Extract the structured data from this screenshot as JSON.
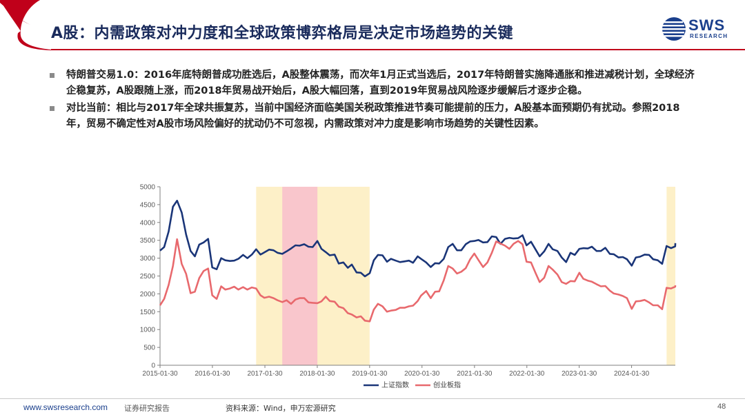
{
  "header": {
    "title": "A股：内需政策对冲力度和全球政策博弈格局是决定市场趋势的关键",
    "logo_text": "SWS",
    "logo_sub": "RESEARCH"
  },
  "bullets": [
    "特朗普交易1.0：2016年底特朗普成功胜选后，A股整体震荡，而次年1月正式当选后，2017年特朗普实施降通胀和推进减税计划，全球经济企稳复苏，A股跟随上涨，而2018年贸易战开始后，A股大幅回落，直到2019年贸易战风险逐步缓解后才逐步企稳。",
    "对比当前：相比与2017年全球共振复苏，当前中国经济面临美国关税政策推进节奏可能提前的压力，A股基本面预期仍有扰动。参照2018年，贸易不确定性对A股市场风险偏好的扰动仍不可忽视，内需政策对冲力度是影响市场趋势的关键性因素。"
  ],
  "chart_data": {
    "type": "line",
    "x_ticks": [
      "2015-01-30",
      "2016-01-30",
      "2017-01-30",
      "2018-01-30",
      "2019-01-30",
      "2020-01-30",
      "2021-01-30",
      "2022-01-30",
      "2023-01-30",
      "2024-01-30"
    ],
    "y_ticks": [
      0,
      500,
      1000,
      1500,
      2000,
      2500,
      3000,
      3500,
      4000,
      4500,
      5000
    ],
    "ylim": [
      0,
      5000
    ],
    "xlim": [
      "2015-01-30",
      "2024-11-30"
    ],
    "grid": false,
    "legend_position": "bottom",
    "shaded_periods": [
      {
        "start": "2016-11-30",
        "end": "2019-01-30",
        "color": "#fdf0c8"
      },
      {
        "start": "2017-05-31",
        "end": "2018-01-31",
        "color": "#f9c6cc"
      },
      {
        "start": "2024-09-30",
        "end": "2024-11-30",
        "color": "#fdf0c8"
      }
    ],
    "series": [
      {
        "name": "上证指数",
        "color": "#1a3578",
        "points": [
          [
            "2015-01-30",
            3210
          ],
          [
            "2015-02-28",
            3310
          ],
          [
            "2015-03-31",
            3750
          ],
          [
            "2015-04-30",
            4440
          ],
          [
            "2015-05-29",
            4610
          ],
          [
            "2015-06-30",
            4280
          ],
          [
            "2015-07-31",
            3660
          ],
          [
            "2015-08-31",
            3200
          ],
          [
            "2015-09-30",
            3050
          ],
          [
            "2015-10-30",
            3380
          ],
          [
            "2015-11-30",
            3440
          ],
          [
            "2015-12-31",
            3540
          ],
          [
            "2016-01-29",
            2740
          ],
          [
            "2016-02-29",
            2690
          ],
          [
            "2016-03-31",
            3000
          ],
          [
            "2016-04-29",
            2940
          ],
          [
            "2016-05-31",
            2920
          ],
          [
            "2016-06-30",
            2930
          ],
          [
            "2016-07-29",
            2980
          ],
          [
            "2016-08-31",
            3090
          ],
          [
            "2016-09-30",
            3000
          ],
          [
            "2016-10-31",
            3100
          ],
          [
            "2016-11-30",
            3250
          ],
          [
            "2016-12-30",
            3100
          ],
          [
            "2017-01-26",
            3160
          ],
          [
            "2017-02-28",
            3240
          ],
          [
            "2017-03-31",
            3220
          ],
          [
            "2017-04-28",
            3150
          ],
          [
            "2017-05-31",
            3120
          ],
          [
            "2017-06-30",
            3190
          ],
          [
            "2017-07-31",
            3270
          ],
          [
            "2017-08-31",
            3360
          ],
          [
            "2017-09-29",
            3350
          ],
          [
            "2017-10-31",
            3390
          ],
          [
            "2017-11-30",
            3320
          ],
          [
            "2017-12-29",
            3310
          ],
          [
            "2018-01-31",
            3480
          ],
          [
            "2018-02-28",
            3260
          ],
          [
            "2018-03-30",
            3170
          ],
          [
            "2018-04-27",
            3080
          ],
          [
            "2018-05-31",
            3100
          ],
          [
            "2018-06-29",
            2850
          ],
          [
            "2018-07-31",
            2880
          ],
          [
            "2018-08-31",
            2730
          ],
          [
            "2018-09-28",
            2820
          ],
          [
            "2018-10-31",
            2600
          ],
          [
            "2018-11-30",
            2590
          ],
          [
            "2018-12-28",
            2490
          ],
          [
            "2019-01-31",
            2580
          ],
          [
            "2019-02-28",
            2940
          ],
          [
            "2019-03-29",
            3090
          ],
          [
            "2019-04-30",
            3080
          ],
          [
            "2019-05-31",
            2900
          ],
          [
            "2019-06-28",
            2980
          ],
          [
            "2019-07-31",
            2930
          ],
          [
            "2019-08-30",
            2890
          ],
          [
            "2019-09-30",
            2910
          ],
          [
            "2019-10-31",
            2930
          ],
          [
            "2019-11-29",
            2870
          ],
          [
            "2019-12-31",
            3050
          ],
          [
            "2020-01-23",
            2980
          ],
          [
            "2020-02-28",
            2880
          ],
          [
            "2020-03-31",
            2750
          ],
          [
            "2020-04-30",
            2860
          ],
          [
            "2020-05-29",
            2850
          ],
          [
            "2020-06-30",
            2980
          ],
          [
            "2020-07-31",
            3310
          ],
          [
            "2020-08-31",
            3400
          ],
          [
            "2020-09-30",
            3220
          ],
          [
            "2020-10-30",
            3220
          ],
          [
            "2020-11-30",
            3390
          ],
          [
            "2020-12-31",
            3470
          ],
          [
            "2021-01-29",
            3480
          ],
          [
            "2021-02-26",
            3510
          ],
          [
            "2021-03-31",
            3440
          ],
          [
            "2021-04-30",
            3450
          ],
          [
            "2021-05-31",
            3610
          ],
          [
            "2021-06-30",
            3590
          ],
          [
            "2021-07-30",
            3400
          ],
          [
            "2021-08-31",
            3540
          ],
          [
            "2021-09-30",
            3570
          ],
          [
            "2021-10-29",
            3550
          ],
          [
            "2021-11-30",
            3560
          ],
          [
            "2021-12-31",
            3640
          ],
          [
            "2022-01-28",
            3360
          ],
          [
            "2022-02-28",
            3460
          ],
          [
            "2022-03-31",
            3250
          ],
          [
            "2022-04-29",
            3050
          ],
          [
            "2022-05-31",
            3190
          ],
          [
            "2022-06-30",
            3400
          ],
          [
            "2022-07-29",
            3250
          ],
          [
            "2022-08-31",
            3200
          ],
          [
            "2022-09-30",
            3020
          ],
          [
            "2022-10-31",
            2890
          ],
          [
            "2022-11-30",
            3150
          ],
          [
            "2022-12-30",
            3090
          ],
          [
            "2023-01-31",
            3260
          ],
          [
            "2023-02-28",
            3280
          ],
          [
            "2023-03-31",
            3270
          ],
          [
            "2023-04-28",
            3320
          ],
          [
            "2023-05-31",
            3200
          ],
          [
            "2023-06-30",
            3200
          ],
          [
            "2023-07-31",
            3290
          ],
          [
            "2023-08-31",
            3120
          ],
          [
            "2023-09-28",
            3110
          ],
          [
            "2023-10-31",
            3020
          ],
          [
            "2023-11-30",
            3030
          ],
          [
            "2023-12-29",
            2970
          ],
          [
            "2024-01-31",
            2790
          ],
          [
            "2024-02-29",
            3020
          ],
          [
            "2024-03-29",
            3040
          ],
          [
            "2024-04-30",
            3100
          ],
          [
            "2024-05-31",
            3090
          ],
          [
            "2024-06-28",
            2970
          ],
          [
            "2024-07-31",
            2940
          ],
          [
            "2024-08-30",
            2840
          ],
          [
            "2024-09-30",
            3340
          ],
          [
            "2024-10-31",
            3280
          ],
          [
            "2024-11-29",
            3330
          ],
          [
            "2024-11-30",
            3420
          ]
        ]
      },
      {
        "name": "创业板指",
        "color": "#e8696d",
        "points": [
          [
            "2015-01-30",
            1680
          ],
          [
            "2015-02-28",
            1860
          ],
          [
            "2015-03-31",
            2250
          ],
          [
            "2015-04-30",
            2780
          ],
          [
            "2015-05-29",
            3530
          ],
          [
            "2015-06-30",
            2840
          ],
          [
            "2015-07-31",
            2560
          ],
          [
            "2015-08-31",
            2020
          ],
          [
            "2015-09-30",
            2060
          ],
          [
            "2015-10-30",
            2440
          ],
          [
            "2015-11-30",
            2640
          ],
          [
            "2015-12-31",
            2710
          ],
          [
            "2016-01-29",
            1960
          ],
          [
            "2016-02-29",
            1860
          ],
          [
            "2016-03-31",
            2210
          ],
          [
            "2016-04-29",
            2120
          ],
          [
            "2016-05-31",
            2150
          ],
          [
            "2016-06-30",
            2200
          ],
          [
            "2016-07-29",
            2120
          ],
          [
            "2016-08-31",
            2190
          ],
          [
            "2016-09-30",
            2120
          ],
          [
            "2016-10-31",
            2180
          ],
          [
            "2016-11-30",
            2150
          ],
          [
            "2016-12-30",
            1960
          ],
          [
            "2017-01-26",
            1890
          ],
          [
            "2017-02-28",
            1920
          ],
          [
            "2017-03-31",
            1880
          ],
          [
            "2017-04-28",
            1820
          ],
          [
            "2017-05-31",
            1770
          ],
          [
            "2017-06-30",
            1820
          ],
          [
            "2017-07-31",
            1720
          ],
          [
            "2017-08-31",
            1840
          ],
          [
            "2017-09-29",
            1880
          ],
          [
            "2017-10-31",
            1880
          ],
          [
            "2017-11-30",
            1760
          ],
          [
            "2017-12-29",
            1750
          ],
          [
            "2018-01-31",
            1740
          ],
          [
            "2018-02-28",
            1790
          ],
          [
            "2018-03-30",
            1920
          ],
          [
            "2018-04-27",
            1800
          ],
          [
            "2018-05-31",
            1780
          ],
          [
            "2018-06-29",
            1640
          ],
          [
            "2018-07-31",
            1600
          ],
          [
            "2018-08-31",
            1460
          ],
          [
            "2018-09-28",
            1420
          ],
          [
            "2018-10-31",
            1340
          ],
          [
            "2018-11-30",
            1370
          ],
          [
            "2018-12-28",
            1250
          ],
          [
            "2019-01-31",
            1230
          ],
          [
            "2019-02-28",
            1560
          ],
          [
            "2019-03-29",
            1720
          ],
          [
            "2019-04-30",
            1650
          ],
          [
            "2019-05-31",
            1500
          ],
          [
            "2019-06-28",
            1530
          ],
          [
            "2019-07-31",
            1550
          ],
          [
            "2019-08-30",
            1610
          ],
          [
            "2019-09-30",
            1610
          ],
          [
            "2019-10-31",
            1650
          ],
          [
            "2019-11-29",
            1670
          ],
          [
            "2019-12-31",
            1800
          ],
          [
            "2020-01-23",
            1950
          ],
          [
            "2020-02-28",
            2080
          ],
          [
            "2020-03-31",
            1880
          ],
          [
            "2020-04-30",
            2060
          ],
          [
            "2020-05-29",
            2070
          ],
          [
            "2020-06-30",
            2380
          ],
          [
            "2020-07-31",
            2780
          ],
          [
            "2020-08-31",
            2710
          ],
          [
            "2020-09-30",
            2570
          ],
          [
            "2020-10-30",
            2620
          ],
          [
            "2020-11-30",
            2720
          ],
          [
            "2020-12-31",
            2970
          ],
          [
            "2021-01-29",
            3130
          ],
          [
            "2021-02-26",
            2950
          ],
          [
            "2021-03-31",
            2750
          ],
          [
            "2021-04-30",
            2880
          ],
          [
            "2021-05-31",
            3150
          ],
          [
            "2021-06-30",
            3470
          ],
          [
            "2021-07-30",
            3410
          ],
          [
            "2021-08-31",
            3350
          ],
          [
            "2021-09-30",
            3260
          ],
          [
            "2021-10-29",
            3400
          ],
          [
            "2021-11-30",
            3480
          ],
          [
            "2021-12-31",
            3390
          ],
          [
            "2022-01-28",
            2900
          ],
          [
            "2022-02-28",
            2880
          ],
          [
            "2022-03-31",
            2590
          ],
          [
            "2022-04-29",
            2330
          ],
          [
            "2022-05-31",
            2450
          ],
          [
            "2022-06-30",
            2780
          ],
          [
            "2022-07-29",
            2680
          ],
          [
            "2022-08-31",
            2540
          ],
          [
            "2022-09-30",
            2330
          ],
          [
            "2022-10-31",
            2280
          ],
          [
            "2022-11-30",
            2360
          ],
          [
            "2022-12-30",
            2350
          ],
          [
            "2023-01-31",
            2590
          ],
          [
            "2023-02-28",
            2420
          ],
          [
            "2023-03-31",
            2370
          ],
          [
            "2023-04-28",
            2340
          ],
          [
            "2023-05-31",
            2270
          ],
          [
            "2023-06-30",
            2210
          ],
          [
            "2023-07-31",
            2220
          ],
          [
            "2023-08-31",
            2090
          ],
          [
            "2023-09-28",
            2010
          ],
          [
            "2023-10-31",
            1980
          ],
          [
            "2023-11-30",
            1940
          ],
          [
            "2023-12-29",
            1880
          ],
          [
            "2024-01-31",
            1580
          ],
          [
            "2024-02-29",
            1790
          ],
          [
            "2024-03-29",
            1800
          ],
          [
            "2024-04-30",
            1830
          ],
          [
            "2024-05-31",
            1760
          ],
          [
            "2024-06-28",
            1680
          ],
          [
            "2024-07-31",
            1680
          ],
          [
            "2024-08-30",
            1570
          ],
          [
            "2024-09-30",
            2170
          ],
          [
            "2024-10-31",
            2150
          ],
          [
            "2024-11-29",
            2200
          ],
          [
            "2024-11-30",
            2240
          ]
        ]
      }
    ]
  },
  "footer": {
    "url": "www.swsresearch.com",
    "report_type": "证券研究报告",
    "source": "资料来源：Wind，申万宏源研究",
    "page": "48"
  },
  "colors": {
    "title": "#1a2b5c",
    "accent_red": "#c0001a",
    "brand_blue": "#1a3f8c"
  }
}
